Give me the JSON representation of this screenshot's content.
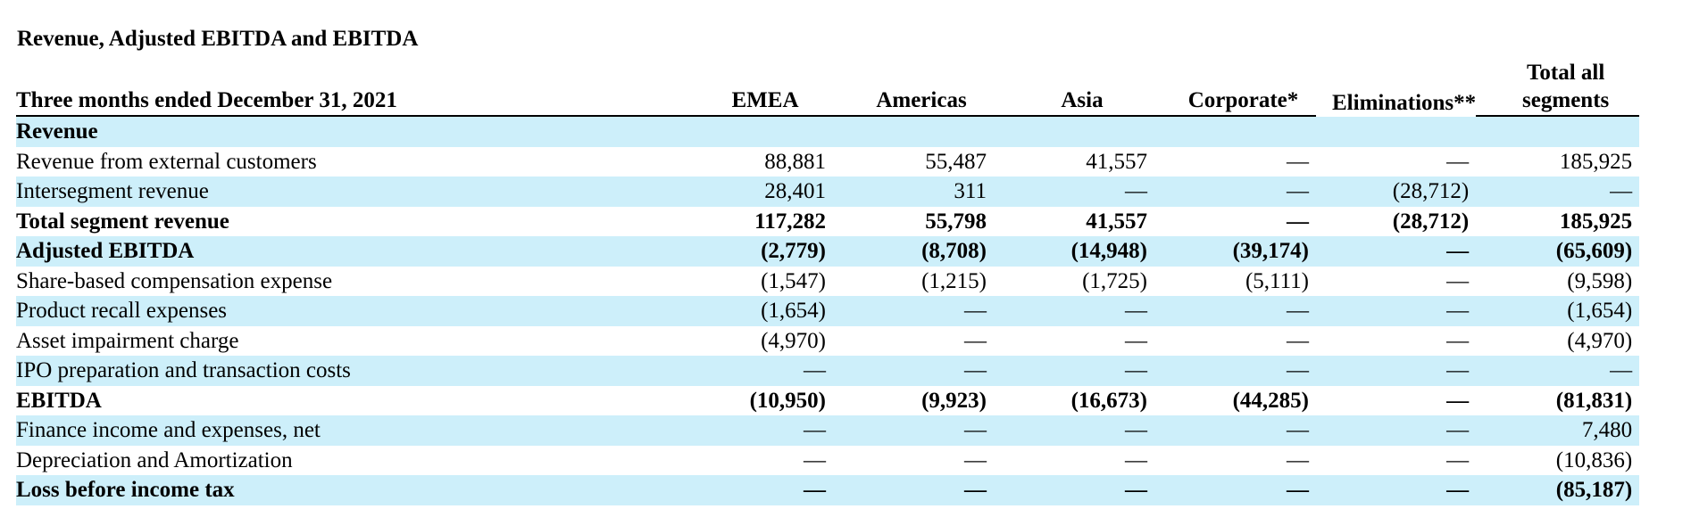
{
  "title": "Revenue, Adjusted EBITDA and EBITDA",
  "header": {
    "period": "Three months ended December 31, 2021",
    "columns": [
      "EMEA",
      "Americas",
      "Asia",
      "Corporate*",
      "Eliminations**",
      "Total all segments"
    ]
  },
  "rows": [
    {
      "label": "Revenue",
      "values": [
        "",
        "",
        "",
        "",
        "",
        ""
      ]
    },
    {
      "label": "Revenue from external customers",
      "values": [
        "88,881",
        "55,487",
        "41,557",
        "—",
        "—",
        "185,925"
      ]
    },
    {
      "label": "Intersegment revenue",
      "values": [
        "28,401",
        "311",
        "—",
        "—",
        "(28,712)",
        "—"
      ]
    },
    {
      "label": "Total segment revenue",
      "values": [
        "117,282",
        "55,798",
        "41,557",
        "—",
        "(28,712)",
        "185,925"
      ]
    },
    {
      "label": "Adjusted EBITDA",
      "values": [
        "(2,779)",
        "(8,708)",
        "(14,948)",
        "(39,174)",
        "—",
        "(65,609)"
      ]
    },
    {
      "label": "Share-based compensation expense",
      "values": [
        "(1,547)",
        "(1,215)",
        "(1,725)",
        "(5,111)",
        "—",
        "(9,598)"
      ]
    },
    {
      "label": "Product recall expenses",
      "values": [
        "(1,654)",
        "—",
        "—",
        "—",
        "—",
        "(1,654)"
      ]
    },
    {
      "label": "Asset impairment charge",
      "values": [
        "(4,970)",
        "—",
        "—",
        "—",
        "—",
        "(4,970)"
      ]
    },
    {
      "label": "IPO preparation and transaction costs",
      "values": [
        "—",
        "—",
        "—",
        "—",
        "—",
        "—"
      ]
    },
    {
      "label": "EBITDA",
      "values": [
        "(10,950)",
        "(9,923)",
        "(16,673)",
        "(44,285)",
        "—",
        "(81,831)"
      ]
    },
    {
      "label": "Finance income and expenses, net",
      "values": [
        "—",
        "—",
        "—",
        "—",
        "—",
        "7,480"
      ]
    },
    {
      "label": "Depreciation and Amortization",
      "values": [
        "—",
        "—",
        "—",
        "—",
        "—",
        "(10,836)"
      ]
    },
    {
      "label": "Loss before income tax",
      "values": [
        "—",
        "—",
        "—",
        "—",
        "—",
        "(85,187)"
      ]
    }
  ],
  "colors": {
    "row_shade": "#cdeffa",
    "text": "#000000"
  }
}
